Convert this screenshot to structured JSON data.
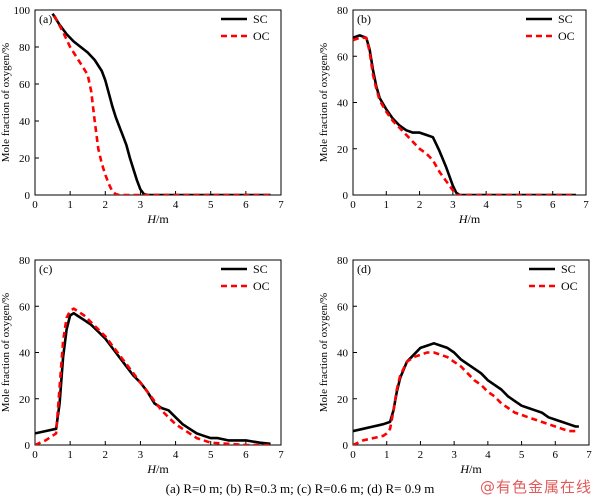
{
  "figure": {
    "caption": "(a) R=0 m; (b) R=0.3 m; (c) R=0.6 m; (d) R= 0.9 m",
    "watermark": "@有色金属在线",
    "colors": {
      "SC": "#000000",
      "OC": "#ff0000"
    }
  },
  "chart_data": [
    {
      "type": "line",
      "panel_label": "(a)",
      "xlabel": "H/m",
      "ylabel": "Mole fraction of oxygen/%",
      "xlim": [
        0,
        7
      ],
      "ylim": [
        0,
        100
      ],
      "xticks": [
        0,
        1,
        2,
        3,
        4,
        5,
        6,
        7
      ],
      "yticks": [
        0,
        20,
        40,
        60,
        80,
        100
      ],
      "legend_position": "top-right",
      "series": [
        {
          "name": "SC",
          "style": "solid",
          "x": [
            0.5,
            0.7,
            0.9,
            1.1,
            1.3,
            1.5,
            1.7,
            1.9,
            2.0,
            2.1,
            2.2,
            2.3,
            2.4,
            2.5,
            2.6,
            2.7,
            2.8,
            2.9,
            3.0,
            3.1,
            3.2,
            3.4,
            4,
            5,
            6,
            6.7
          ],
          "y": [
            98,
            92,
            87,
            83,
            80,
            77,
            73,
            67,
            62,
            55,
            48,
            42,
            37,
            32,
            27,
            20,
            14,
            8,
            3,
            0.5,
            0,
            0,
            0,
            0,
            0,
            0
          ]
        },
        {
          "name": "OC",
          "style": "dashed",
          "x": [
            0.55,
            0.8,
            1.0,
            1.2,
            1.4,
            1.5,
            1.6,
            1.7,
            1.8,
            1.9,
            2.0,
            2.1,
            2.2,
            2.3,
            2.4,
            2.6,
            3,
            4,
            5,
            6,
            6.7
          ],
          "y": [
            97,
            88,
            80,
            74,
            68,
            65,
            56,
            40,
            25,
            17,
            11,
            6,
            2,
            0.5,
            0,
            0,
            0,
            0,
            0,
            0,
            0
          ]
        }
      ]
    },
    {
      "type": "line",
      "panel_label": "(b)",
      "xlabel": "H/m",
      "ylabel": "Mole fraction of oxygen/%",
      "xlim": [
        0,
        7
      ],
      "ylim": [
        0,
        80
      ],
      "xticks": [
        0,
        1,
        2,
        3,
        4,
        5,
        6,
        7
      ],
      "yticks": [
        0,
        20,
        40,
        60,
        80
      ],
      "legend_position": "top-right",
      "series": [
        {
          "name": "SC",
          "style": "solid",
          "x": [
            0,
            0.2,
            0.4,
            0.5,
            0.6,
            0.7,
            0.8,
            1.0,
            1.2,
            1.4,
            1.6,
            1.8,
            2.0,
            2.2,
            2.4,
            2.5,
            2.6,
            2.8,
            3.0,
            3.1,
            3.2,
            3.3,
            4,
            5,
            6,
            6.7
          ],
          "y": [
            68,
            69,
            68,
            63,
            54,
            47,
            42,
            37,
            33,
            30,
            28,
            27,
            27,
            26,
            25,
            22,
            19,
            12,
            4,
            1,
            0,
            0,
            0,
            0,
            0,
            0
          ]
        },
        {
          "name": "OC",
          "style": "dashed",
          "x": [
            0,
            0.2,
            0.4,
            0.5,
            0.6,
            0.7,
            0.8,
            1.0,
            1.2,
            1.4,
            1.6,
            1.8,
            2.0,
            2.2,
            2.4,
            2.6,
            2.8,
            3.0,
            3.1,
            3.2,
            4,
            5,
            6,
            6.7
          ],
          "y": [
            67,
            68,
            68,
            62,
            52,
            46,
            41,
            36,
            32,
            29,
            26,
            23,
            20,
            18,
            15,
            10,
            6,
            2,
            0,
            0,
            0,
            0,
            0,
            0
          ]
        }
      ]
    },
    {
      "type": "line",
      "panel_label": "(c)",
      "xlabel": "H/m",
      "ylabel": "Mole fraction of oxygen/%",
      "xlim": [
        0,
        7
      ],
      "ylim": [
        0,
        80
      ],
      "xticks": [
        0,
        1,
        2,
        3,
        4,
        5,
        6,
        7
      ],
      "yticks": [
        0,
        20,
        40,
        60,
        80
      ],
      "legend_position": "top-right",
      "series": [
        {
          "name": "SC",
          "style": "solid",
          "x": [
            0,
            0.3,
            0.6,
            0.7,
            0.8,
            0.9,
            1.0,
            1.1,
            1.2,
            1.4,
            1.6,
            1.8,
            2.0,
            2.2,
            2.4,
            2.6,
            2.8,
            3.0,
            3.2,
            3.4,
            3.6,
            3.8,
            4.0,
            4.2,
            4.4,
            4.6,
            4.8,
            5.0,
            5.2,
            5.5,
            6.0,
            6.4,
            6.7
          ],
          "y": [
            5,
            6,
            7,
            18,
            38,
            50,
            56,
            57,
            56,
            54,
            52,
            49,
            46,
            42,
            38,
            34,
            30,
            27,
            23,
            18,
            16,
            15,
            12,
            9,
            7,
            5,
            4,
            3,
            3,
            2,
            2,
            1,
            0.5
          ]
        },
        {
          "name": "OC",
          "style": "dashed",
          "x": [
            0,
            0.3,
            0.6,
            0.7,
            0.8,
            0.9,
            1.0,
            1.1,
            1.2,
            1.4,
            1.6,
            1.8,
            2.0,
            2.2,
            2.4,
            2.6,
            2.8,
            3.0,
            3.2,
            3.4,
            3.6,
            3.8,
            4.0,
            4.2,
            4.4,
            4.6,
            4.8,
            5.0,
            5.5,
            6.0,
            6.7
          ],
          "y": [
            0,
            2,
            5,
            25,
            45,
            55,
            58,
            59,
            58,
            56,
            53,
            50,
            47,
            43,
            39,
            35,
            31,
            27,
            23,
            19,
            15,
            12,
            9,
            7,
            5,
            3,
            2,
            1,
            0.5,
            0,
            0
          ]
        }
      ]
    },
    {
      "type": "line",
      "panel_label": "(d)",
      "xlabel": "H/m",
      "ylabel": "Mole fraction of oxygen/%",
      "xlim": [
        0,
        7
      ],
      "ylim": [
        0,
        80
      ],
      "xticks": [
        0,
        1,
        2,
        3,
        4,
        5,
        6,
        7
      ],
      "yticks": [
        0,
        20,
        40,
        60,
        80
      ],
      "legend_position": "top-right",
      "series": [
        {
          "name": "SC",
          "style": "solid",
          "x": [
            0,
            0.3,
            0.6,
            0.9,
            1.1,
            1.2,
            1.3,
            1.4,
            1.6,
            1.8,
            2.0,
            2.2,
            2.4,
            2.6,
            2.8,
            3.0,
            3.2,
            3.4,
            3.6,
            3.8,
            4.0,
            4.2,
            4.4,
            4.6,
            4.8,
            5.0,
            5.2,
            5.4,
            5.6,
            5.8,
            6.0,
            6.2,
            6.4,
            6.6,
            6.7
          ],
          "y": [
            6,
            7,
            8,
            9,
            10,
            15,
            23,
            29,
            36,
            39,
            42,
            43,
            44,
            43,
            42,
            40,
            37,
            35,
            33,
            31,
            28,
            26,
            24,
            21,
            19,
            17,
            16,
            15,
            14,
            12,
            11,
            10,
            9,
            8,
            8
          ]
        },
        {
          "name": "OC",
          "style": "dashed",
          "x": [
            0,
            0.3,
            0.6,
            0.9,
            1.0,
            1.1,
            1.2,
            1.3,
            1.4,
            1.6,
            1.8,
            2.0,
            2.2,
            2.4,
            2.6,
            2.8,
            3.0,
            3.2,
            3.4,
            3.6,
            3.8,
            4.0,
            4.2,
            4.4,
            4.6,
            4.8,
            5.0,
            5.2,
            5.4,
            5.6,
            5.8,
            6.0,
            6.2,
            6.4,
            6.6,
            6.7
          ],
          "y": [
            0,
            2,
            3,
            4,
            5,
            7,
            15,
            24,
            30,
            36,
            38,
            39,
            40,
            40,
            39,
            38,
            36,
            34,
            31,
            28,
            26,
            23,
            21,
            18,
            16,
            14,
            13,
            12,
            11,
            10,
            9,
            8,
            7,
            6,
            6,
            6
          ]
        }
      ]
    }
  ]
}
